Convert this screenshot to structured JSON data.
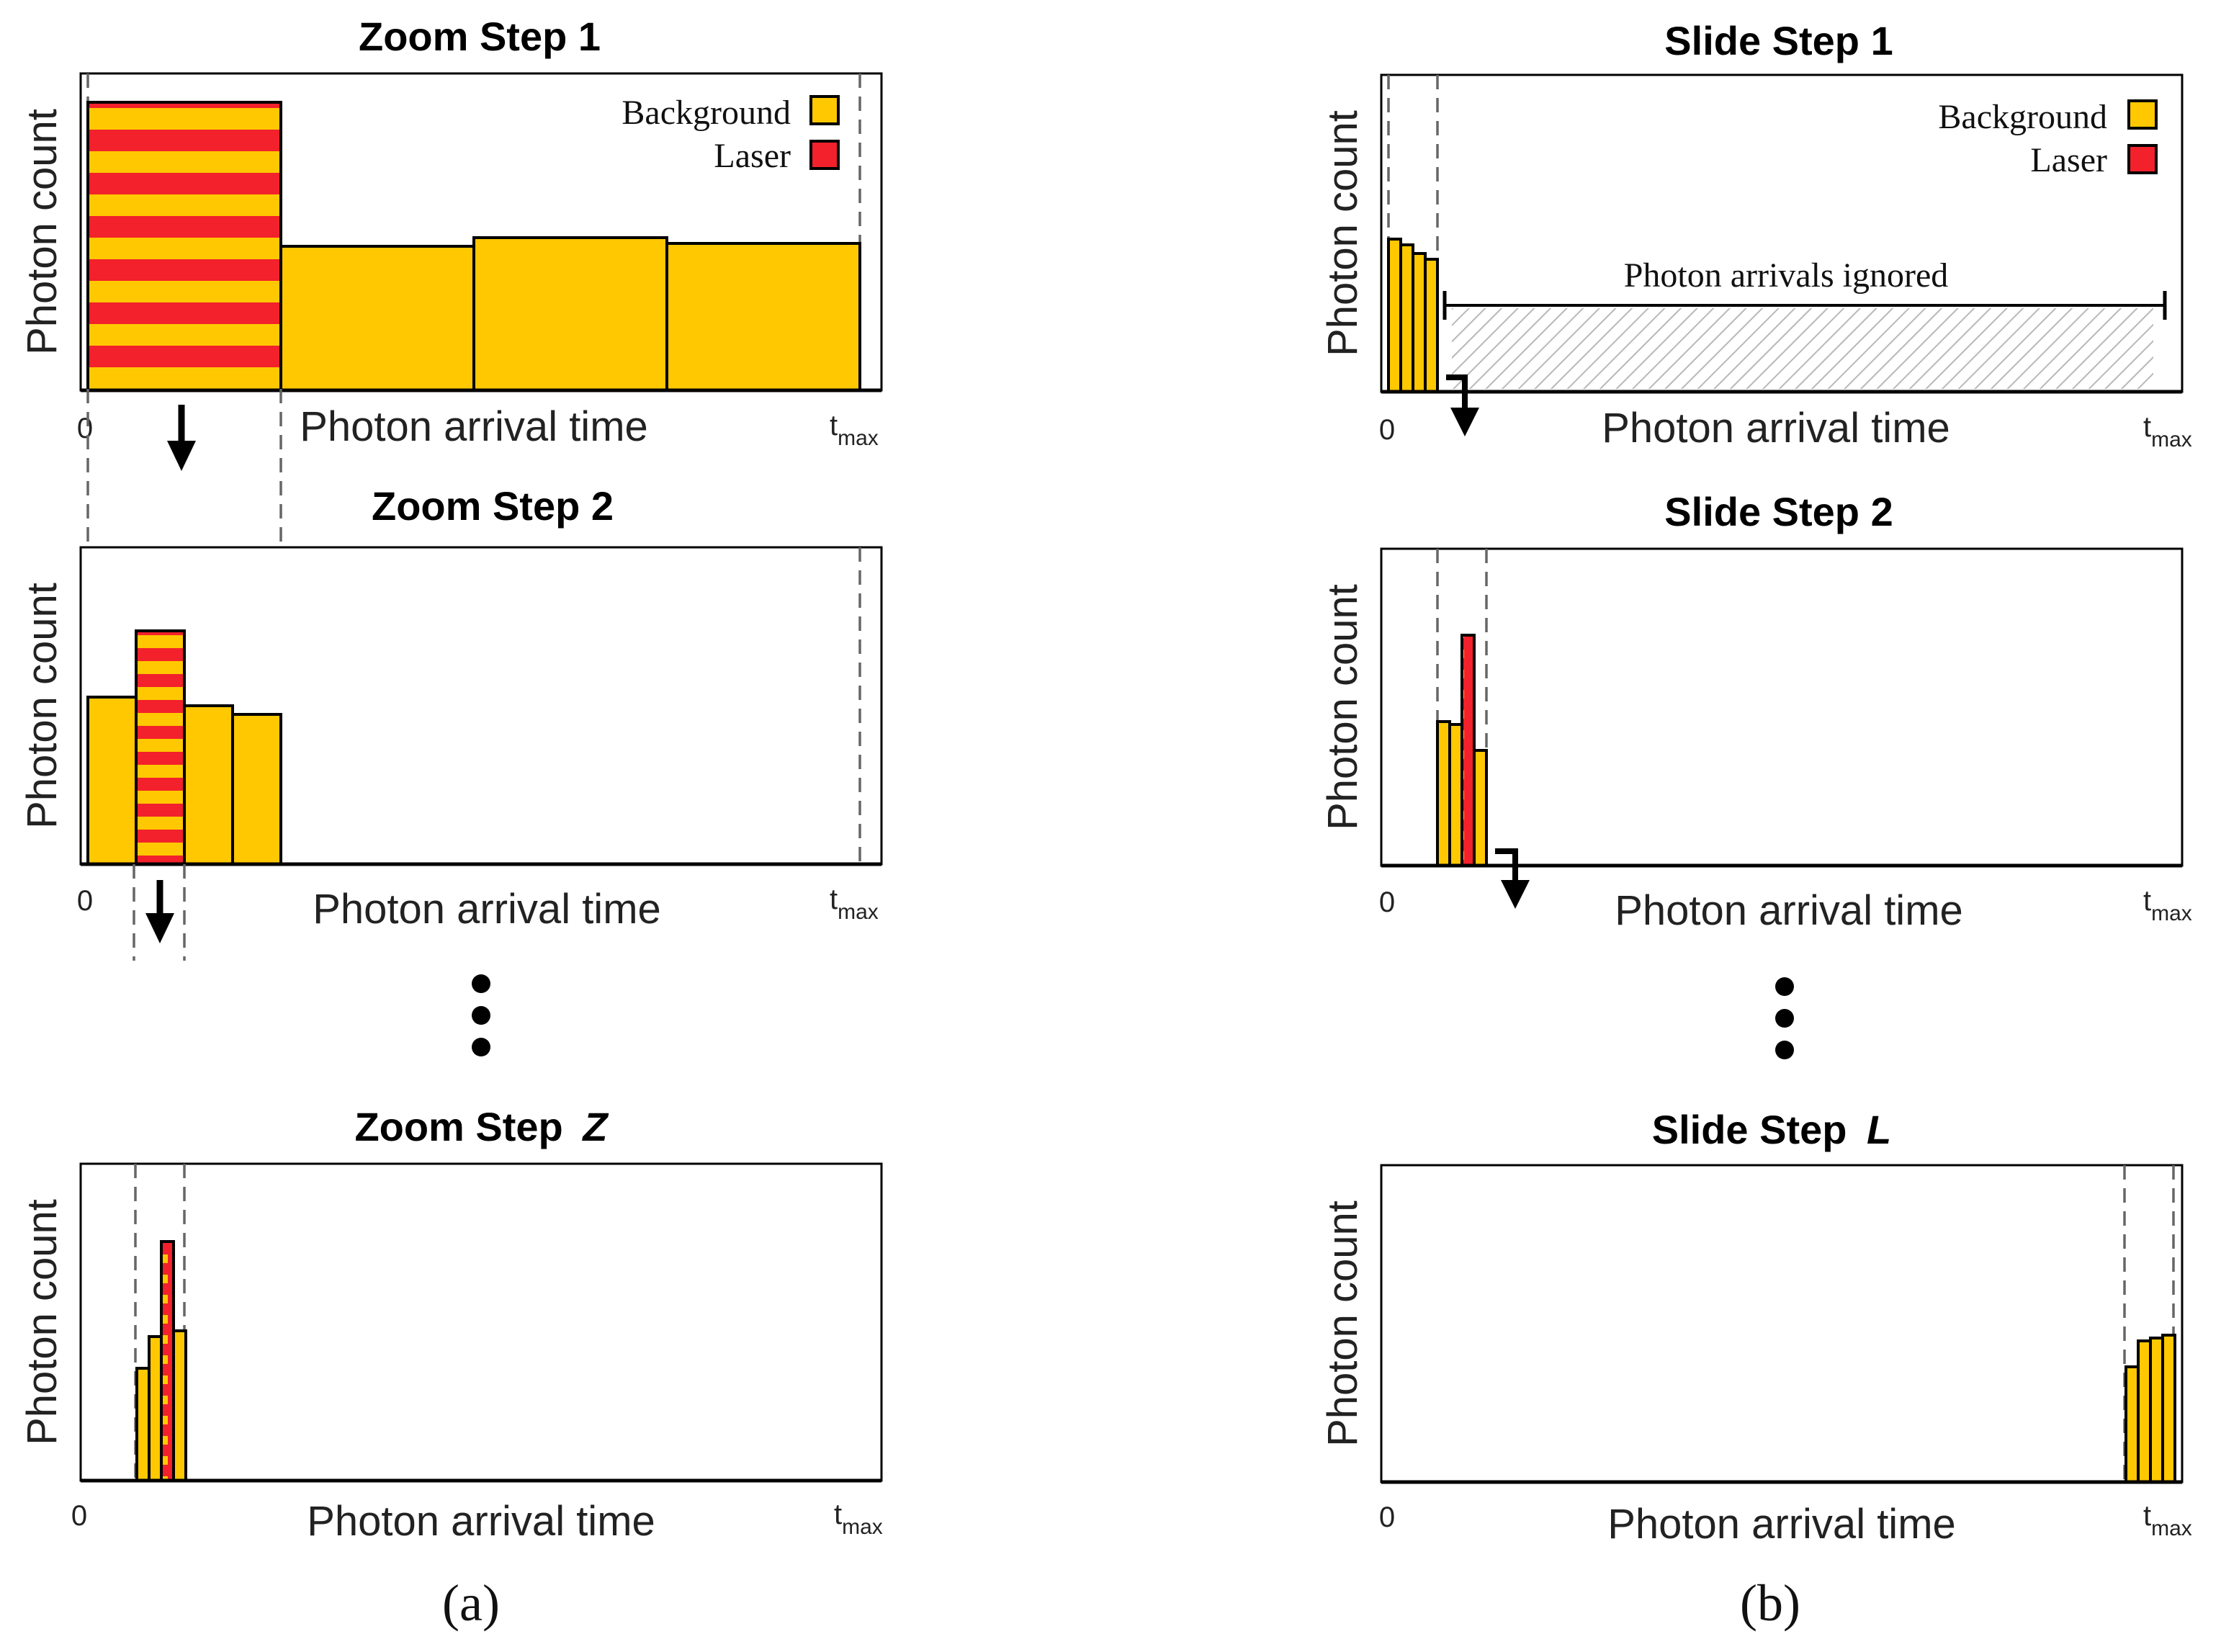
{
  "colors": {
    "background": "#FFC800",
    "laser": "#F2212B",
    "ignored_hatch": "#b8b8b8",
    "dots": "#000000"
  },
  "axis": {
    "ylabel": "Photon count",
    "xlabel": "Photon arrival time",
    "x_start": "0",
    "x_end_main": "t",
    "x_end_sub": "max"
  },
  "legend": {
    "background": "Background",
    "laser": "Laser"
  },
  "panel_a": {
    "caption": "(a)",
    "steps": [
      {
        "title": "Zoom Step 1",
        "title_italic": ""
      },
      {
        "title": "Zoom Step 2",
        "title_italic": ""
      },
      {
        "title": "Zoom Step ",
        "title_italic": "Z"
      }
    ]
  },
  "panel_b": {
    "caption": "(b)",
    "ignored_label": "Photon arrivals ignored",
    "steps": [
      {
        "title": "Slide Step 1",
        "title_italic": ""
      },
      {
        "title": "Slide Step 2",
        "title_italic": ""
      },
      {
        "title": "Slide Step ",
        "title_italic": "L"
      }
    ]
  },
  "histograms": {
    "zoom1": [
      {
        "value": 1.0,
        "laser": true
      },
      {
        "value": 0.5,
        "laser": false
      },
      {
        "value": 0.53,
        "laser": false
      },
      {
        "value": 0.51,
        "laser": false
      }
    ],
    "zoom2": [
      {
        "value": 0.58,
        "laser": false
      },
      {
        "value": 0.81,
        "laser": true
      },
      {
        "value": 0.55,
        "laser": false
      },
      {
        "value": 0.52,
        "laser": false
      }
    ],
    "zoomZ": [
      {
        "value": 0.39,
        "laser": false
      },
      {
        "value": 0.5,
        "laser": false
      },
      {
        "value": 0.83,
        "laser": true
      },
      {
        "value": 0.52,
        "laser": false
      }
    ],
    "slide1": [
      {
        "value": 0.53,
        "laser": false
      },
      {
        "value": 0.51,
        "laser": false
      },
      {
        "value": 0.48,
        "laser": false
      },
      {
        "value": 0.46,
        "laser": false
      }
    ],
    "slide2": [
      {
        "value": 0.5,
        "laser": false
      },
      {
        "value": 0.49,
        "laser": false
      },
      {
        "value": 0.8,
        "laser": true
      },
      {
        "value": 0.4,
        "laser": false
      }
    ],
    "slideL": [
      {
        "value": 0.4,
        "laser": false
      },
      {
        "value": 0.49,
        "laser": false
      },
      {
        "value": 0.5,
        "laser": false
      },
      {
        "value": 0.51,
        "laser": false
      }
    ]
  }
}
